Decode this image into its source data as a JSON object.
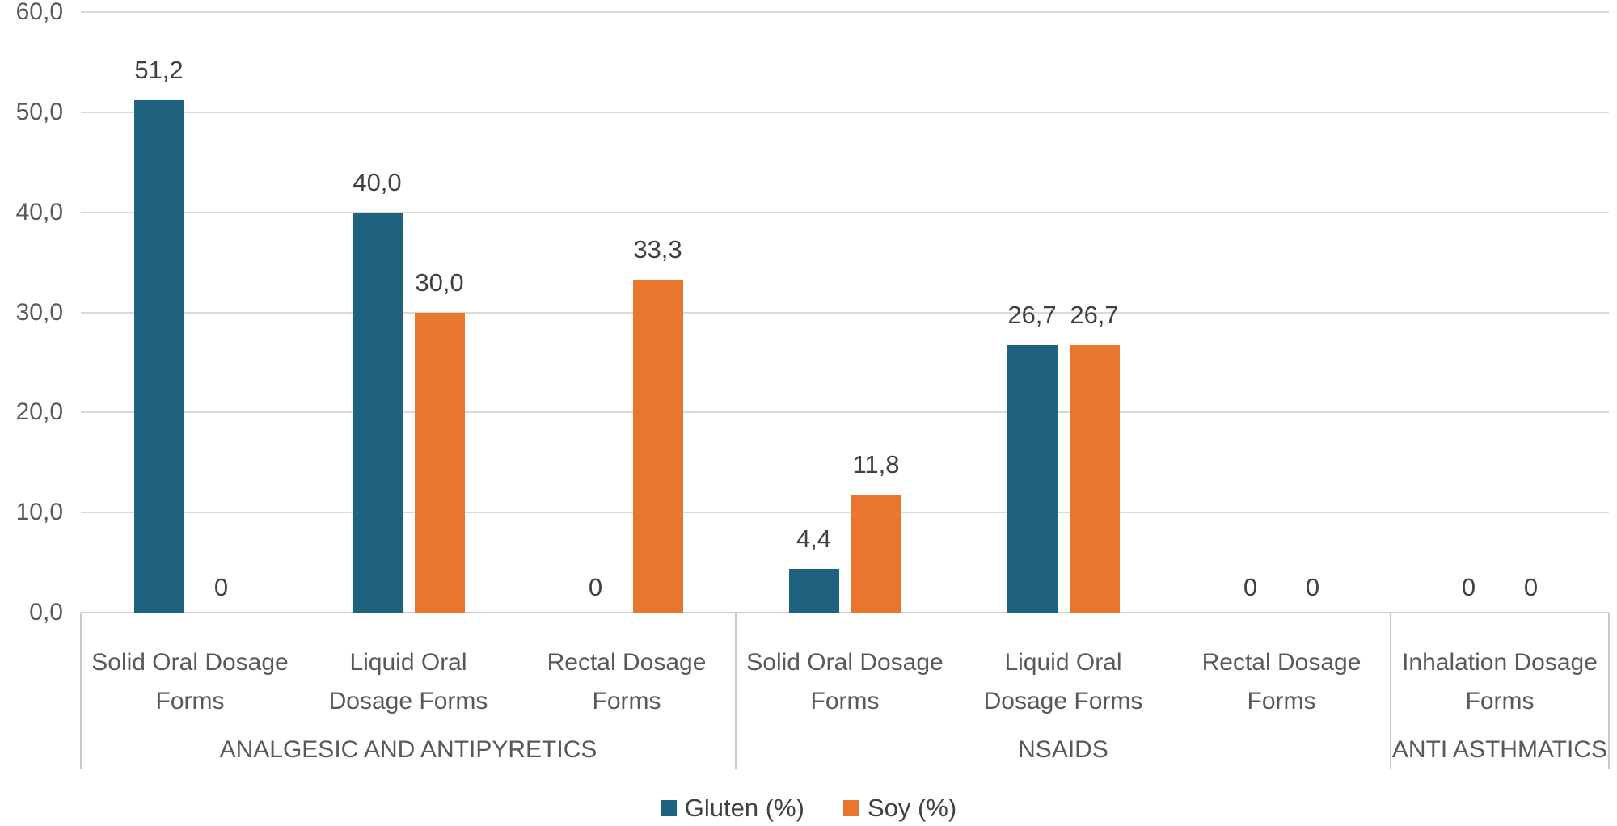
{
  "chart_data": {
    "type": "bar",
    "title": "",
    "xlabel": "",
    "ylabel": "",
    "grid": true,
    "legend_position": "bottom",
    "decimal_separator": ",",
    "y_axis": {
      "min": 0,
      "max": 60,
      "step": 10,
      "tick_labels": [
        "0,0",
        "10,0",
        "20,0",
        "30,0",
        "40,0",
        "50,0",
        "60,0"
      ]
    },
    "series": [
      {
        "name": "Gluten (%)",
        "color": "#1F6280"
      },
      {
        "name": "Soy (%)",
        "color": "#E8762D"
      }
    ],
    "groups": [
      {
        "label": "ANALGESIC AND ANTIPYRETICS",
        "categories": [
          {
            "label": "Solid Oral Dosage Forms",
            "label_lines": [
              "Solid Oral Dosage",
              "Forms"
            ],
            "values": [
              51.2,
              0
            ],
            "value_labels": [
              "51,2",
              "0"
            ]
          },
          {
            "label": "Liquid Oral Dosage Forms",
            "label_lines": [
              "Liquid Oral",
              "Dosage Forms"
            ],
            "values": [
              40.0,
              30.0
            ],
            "value_labels": [
              "40,0",
              "30,0"
            ]
          },
          {
            "label": "Rectal Dosage Forms",
            "label_lines": [
              "Rectal Dosage",
              "Forms"
            ],
            "values": [
              0,
              33.3
            ],
            "value_labels": [
              "0",
              "33,3"
            ]
          }
        ]
      },
      {
        "label": "NSAIDS",
        "categories": [
          {
            "label": "Solid Oral Dosage Forms",
            "label_lines": [
              "Solid Oral Dosage",
              "Forms"
            ],
            "values": [
              4.4,
              11.8
            ],
            "value_labels": [
              "4,4",
              "11,8"
            ]
          },
          {
            "label": "Liquid Oral Dosage Forms",
            "label_lines": [
              "Liquid Oral",
              "Dosage Forms"
            ],
            "values": [
              26.7,
              26.7
            ],
            "value_labels": [
              "26,7",
              "26,7"
            ]
          },
          {
            "label": "Rectal Dosage Forms",
            "label_lines": [
              "Rectal Dosage",
              "Forms"
            ],
            "values": [
              0,
              0
            ],
            "value_labels": [
              "0",
              "0"
            ]
          }
        ]
      },
      {
        "label": "ANTI ASTHMATICS",
        "categories": [
          {
            "label": "Inhalation Dosage Forms",
            "label_lines": [
              "Inhalation Dosage",
              "Forms"
            ],
            "values": [
              0,
              0
            ],
            "value_labels": [
              "0",
              "0"
            ]
          }
        ]
      }
    ]
  }
}
